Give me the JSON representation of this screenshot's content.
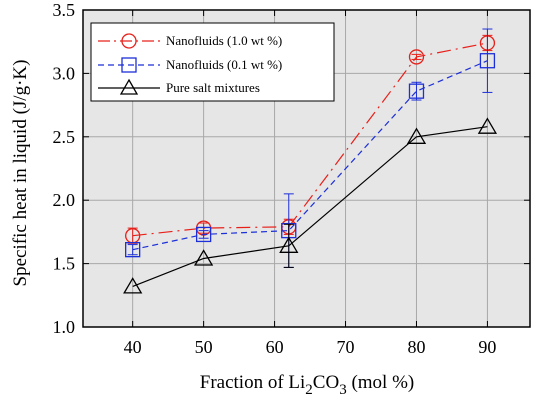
{
  "chart_data": {
    "type": "line",
    "xlabel_prefix": "Fraction of Li",
    "xlabel_sub1": "2",
    "xlabel_mid": "CO",
    "xlabel_sub2": "3",
    "xlabel_suffix": " (mol %)",
    "ylabel": "Specific heat in liquid (J/g·K)",
    "xlim": [
      33,
      96
    ],
    "ylim": [
      1.0,
      3.5
    ],
    "xticks": [
      40,
      50,
      60,
      70,
      80,
      90
    ],
    "yticks": [
      1.0,
      1.5,
      2.0,
      2.5,
      3.0,
      3.5
    ],
    "ytick_labels": [
      "1.0",
      "1.5",
      "2.0",
      "2.5",
      "3.0",
      "3.5"
    ],
    "grid": true,
    "legend_position": "top-left",
    "series": [
      {
        "name": "Nanofluids (1.0 wt %)",
        "color": "#e8201a",
        "marker": "circle",
        "line_style": "dashdot",
        "x": [
          40,
          50,
          62,
          80,
          90
        ],
        "y": [
          1.72,
          1.78,
          1.79,
          3.13,
          3.24
        ],
        "err": [
          0.06,
          0.04,
          0.06,
          0.02,
          0.06
        ]
      },
      {
        "name": "Nanofluids (0.1 wt %)",
        "color": "#1c2fd8",
        "marker": "square",
        "line_style": "dashed",
        "x": [
          40,
          50,
          62,
          80,
          90
        ],
        "y": [
          1.61,
          1.73,
          1.76,
          2.86,
          3.1
        ],
        "err": [
          0.04,
          0.03,
          0.29,
          0.07,
          0.25
        ]
      },
      {
        "name": "Pure salt mixtures",
        "color": "#000000",
        "marker": "triangle",
        "line_style": "solid",
        "x": [
          40,
          50,
          62,
          80,
          90
        ],
        "y": [
          1.32,
          1.54,
          1.64,
          2.5,
          2.58
        ],
        "err": [
          0,
          0,
          0.17,
          0,
          0
        ]
      }
    ]
  }
}
